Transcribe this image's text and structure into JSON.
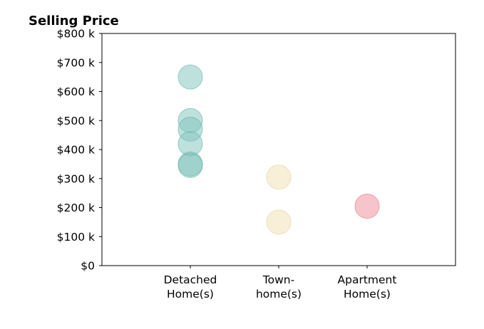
{
  "chart_data": {
    "type": "scatter",
    "title": "Selling Price",
    "xlabel": "",
    "ylabel": "",
    "grid": false,
    "categories": [
      [
        "Detached",
        "Home(s)"
      ],
      [
        "Town-",
        "home(s)"
      ],
      [
        "Apartment",
        "Home(s)"
      ]
    ],
    "xlim": [
      0,
      4
    ],
    "ylim": [
      0,
      800000
    ],
    "yticks": [
      0,
      100000,
      200000,
      300000,
      400000,
      500000,
      600000,
      700000,
      800000
    ],
    "ytick_labels": [
      "$0",
      "$100 k",
      "$200 k",
      "$300 k",
      "$400 k",
      "$500 k",
      "$600 k",
      "$700 k",
      "$800 k"
    ],
    "series": [
      {
        "category_index": 0,
        "color": "#7fc4bc",
        "edge_color": "#5fb0a6",
        "values": [
          650000,
          500000,
          470000,
          420000,
          350000,
          345000
        ]
      },
      {
        "category_index": 1,
        "color": "#f2dfb3",
        "edge_color": "#e6cf98",
        "values": [
          305000,
          150000
        ]
      },
      {
        "category_index": 2,
        "color": "#f08a97",
        "edge_color": "#e56f7e",
        "values": [
          205000
        ]
      }
    ]
  }
}
